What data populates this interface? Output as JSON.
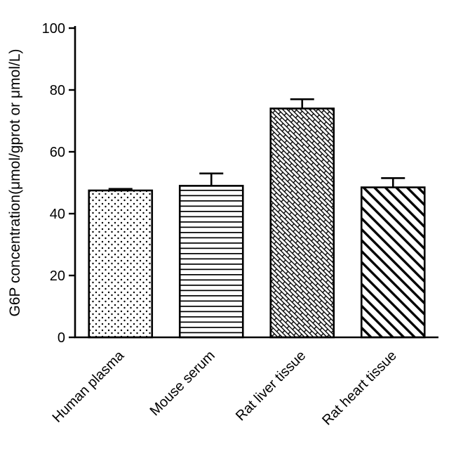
{
  "chart_data": {
    "type": "bar",
    "categories": [
      "Human plasma",
      "Mouse serum",
      "Rat liver tissue",
      "Rat heart tissue"
    ],
    "values": [
      47.5,
      49,
      74,
      48.5
    ],
    "errors": [
      0.5,
      4,
      3,
      3
    ],
    "bar_patterns": [
      "dots",
      "horizontal-lines",
      "bricks",
      "diagonal-lines"
    ],
    "title": "",
    "xlabel": "",
    "ylabel": "G6P concentration(μmol/gprot or μmol/L)",
    "ylim": [
      0,
      100
    ],
    "yticks": [
      0,
      20,
      40,
      60,
      80,
      100
    ],
    "bar_fill": "#ffffff",
    "line_color": "#000000",
    "legend": "none",
    "grid": "off",
    "error_bars": "upper, with caps"
  }
}
